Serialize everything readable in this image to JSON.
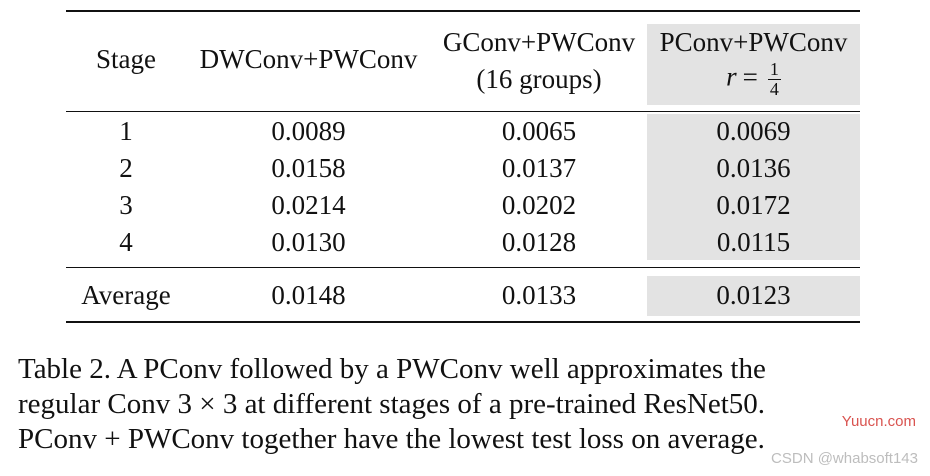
{
  "table": {
    "headers": {
      "stage": "Stage",
      "dwconv": "DWConv+PWConv",
      "gconv_line1": "GConv+PWConv",
      "gconv_line2": "(16 groups)",
      "pconv_line1": "PConv+PWConv",
      "pconv_r_var": "r",
      "pconv_r_eq": "=",
      "pconv_r_num": "1",
      "pconv_r_den": "4"
    },
    "rows": [
      {
        "stage": "1",
        "dwconv": "0.0089",
        "gconv": "0.0065",
        "pconv": "0.0069"
      },
      {
        "stage": "2",
        "dwconv": "0.0158",
        "gconv": "0.0137",
        "pconv": "0.0136"
      },
      {
        "stage": "3",
        "dwconv": "0.0214",
        "gconv": "0.0202",
        "pconv": "0.0172"
      },
      {
        "stage": "4",
        "dwconv": "0.0130",
        "gconv": "0.0128",
        "pconv": "0.0115"
      }
    ],
    "average": {
      "label": "Average",
      "dwconv": "0.0148",
      "gconv": "0.0133",
      "pconv": "0.0123"
    },
    "highlight_color": "#e3e3e3"
  },
  "caption": {
    "line1": "Table 2. A PConv followed by a PWConv well approximates the",
    "line2": "regular Conv 3 × 3 at different stages of a pre-trained ResNet50.",
    "line3": "PConv + PWConv together have the lowest test loss on average."
  },
  "watermarks": {
    "site": "Yuucn.com",
    "csdn": "CSDN @whabsoft143"
  }
}
